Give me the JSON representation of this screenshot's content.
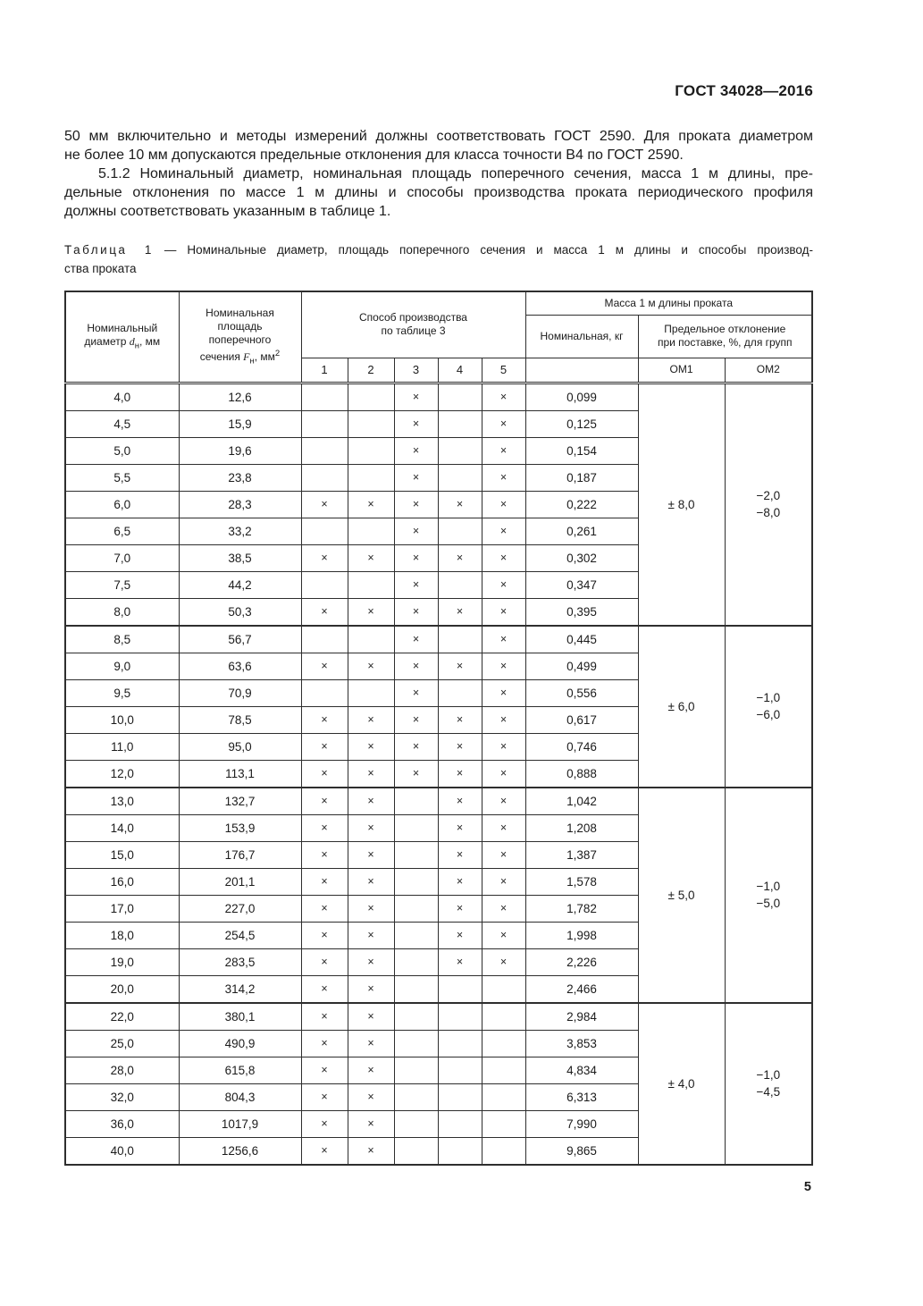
{
  "page": {
    "doc_code": "ГОСТ 34028—2016",
    "page_number": "5"
  },
  "paragraphs": {
    "p1_line1": "50 мм включительно и методы измерений должны соответствовать ГОСТ 2590. Для проката диаметром",
    "p1_line2": "не более 10 мм допускаются предельные отклонения для класса точности В4 по ГОСТ 2590.",
    "p2_line1": "5.1.2  Номинальный диаметр, номинальная площадь поперечного сечения, масса 1 м длины, пре-",
    "p2_line2": "дельные отклонения по массе 1 м длины и способы производства проката периодического профиля",
    "p2_line3": "должны соответствовать указанным в таблице 1."
  },
  "table": {
    "caption_label": "Таблица 1",
    "caption_line1_rest": "— Номинальные диаметр, площадь поперечного сечения и масса 1 м длины и способы производ-",
    "caption_line2": "ства проката",
    "head": {
      "diameter_line1": "Номинальный",
      "diameter_line2_pre": "диаметр ",
      "diameter_symbol": "d",
      "diameter_sub": "н",
      "diameter_line2_post": ", мм",
      "area_line1": "Номинальная",
      "area_line2": "площадь",
      "area_line3": "поперечного",
      "area_line4_pre": "сечения ",
      "area_symbol": "F",
      "area_sub": "н",
      "area_line4_post": ", мм",
      "area_sup": "2",
      "method_line1": "Способ производства",
      "method_line2": "по таблице 3",
      "method_cols": [
        "1",
        "2",
        "3",
        "4",
        "5"
      ],
      "mass": "Масса 1 м длины проката",
      "mass_nominal": "Номинальная, кг",
      "tolerance_line1": "Предельное отклонение",
      "tolerance_line2": "при поставке, %, для групп",
      "om1": "ОМ1",
      "om2": "ОМ2"
    },
    "groups": [
      {
        "om1": "± 8,0",
        "om2": "−2,0\n−8,0",
        "rows": [
          {
            "d": "4,0",
            "f": "12,6",
            "m": [
              "",
              "",
              "×",
              "",
              "×"
            ],
            "mass": "0,099"
          },
          {
            "d": "4,5",
            "f": "15,9",
            "m": [
              "",
              "",
              "×",
              "",
              "×"
            ],
            "mass": "0,125"
          },
          {
            "d": "5,0",
            "f": "19,6",
            "m": [
              "",
              "",
              "×",
              "",
              "×"
            ],
            "mass": "0,154"
          },
          {
            "d": "5,5",
            "f": "23,8",
            "m": [
              "",
              "",
              "×",
              "",
              "×"
            ],
            "mass": "0,187"
          },
          {
            "d": "6,0",
            "f": "28,3",
            "m": [
              "×",
              "×",
              "×",
              "×",
              "×"
            ],
            "mass": "0,222"
          },
          {
            "d": "6,5",
            "f": "33,2",
            "m": [
              "",
              "",
              "×",
              "",
              "×"
            ],
            "mass": "0,261"
          },
          {
            "d": "7,0",
            "f": "38,5",
            "m": [
              "×",
              "×",
              "×",
              "×",
              "×"
            ],
            "mass": "0,302"
          },
          {
            "d": "7,5",
            "f": "44,2",
            "m": [
              "",
              "",
              "×",
              "",
              "×"
            ],
            "mass": "0,347"
          },
          {
            "d": "8,0",
            "f": "50,3",
            "m": [
              "×",
              "×",
              "×",
              "×",
              "×"
            ],
            "mass": "0,395"
          }
        ]
      },
      {
        "om1": "± 6,0",
        "om2": "−1,0\n−6,0",
        "rows": [
          {
            "d": "8,5",
            "f": "56,7",
            "m": [
              "",
              "",
              "×",
              "",
              "×"
            ],
            "mass": "0,445"
          },
          {
            "d": "9,0",
            "f": "63,6",
            "m": [
              "×",
              "×",
              "×",
              "×",
              "×"
            ],
            "mass": "0,499"
          },
          {
            "d": "9,5",
            "f": "70,9",
            "m": [
              "",
              "",
              "×",
              "",
              "×"
            ],
            "mass": "0,556"
          },
          {
            "d": "10,0",
            "f": "78,5",
            "m": [
              "×",
              "×",
              "×",
              "×",
              "×"
            ],
            "mass": "0,617"
          },
          {
            "d": "11,0",
            "f": "95,0",
            "m": [
              "×",
              "×",
              "×",
              "×",
              "×"
            ],
            "mass": "0,746"
          },
          {
            "d": "12,0",
            "f": "113,1",
            "m": [
              "×",
              "×",
              "×",
              "×",
              "×"
            ],
            "mass": "0,888"
          }
        ]
      },
      {
        "om1": "± 5,0",
        "om2": "−1,0\n−5,0",
        "rows": [
          {
            "d": "13,0",
            "f": "132,7",
            "m": [
              "×",
              "×",
              "",
              "×",
              "×"
            ],
            "mass": "1,042"
          },
          {
            "d": "14,0",
            "f": "153,9",
            "m": [
              "×",
              "×",
              "",
              "×",
              "×"
            ],
            "mass": "1,208"
          },
          {
            "d": "15,0",
            "f": "176,7",
            "m": [
              "×",
              "×",
              "",
              "×",
              "×"
            ],
            "mass": "1,387"
          },
          {
            "d": "16,0",
            "f": "201,1",
            "m": [
              "×",
              "×",
              "",
              "×",
              "×"
            ],
            "mass": "1,578"
          },
          {
            "d": "17,0",
            "f": "227,0",
            "m": [
              "×",
              "×",
              "",
              "×",
              "×"
            ],
            "mass": "1,782"
          },
          {
            "d": "18,0",
            "f": "254,5",
            "m": [
              "×",
              "×",
              "",
              "×",
              "×"
            ],
            "mass": "1,998"
          },
          {
            "d": "19,0",
            "f": "283,5",
            "m": [
              "×",
              "×",
              "",
              "×",
              "×"
            ],
            "mass": "2,226"
          },
          {
            "d": "20,0",
            "f": "314,2",
            "m": [
              "×",
              "×",
              "",
              "",
              ""
            ],
            "mass": "2,466"
          }
        ]
      },
      {
        "om1": "± 4,0",
        "om2": "−1,0\n−4,5",
        "rows": [
          {
            "d": "22,0",
            "f": "380,1",
            "m": [
              "×",
              "×",
              "",
              "",
              ""
            ],
            "mass": "2,984"
          },
          {
            "d": "25,0",
            "f": "490,9",
            "m": [
              "×",
              "×",
              "",
              "",
              ""
            ],
            "mass": "3,853"
          },
          {
            "d": "28,0",
            "f": "615,8",
            "m": [
              "×",
              "×",
              "",
              "",
              ""
            ],
            "mass": "4,834"
          },
          {
            "d": "32,0",
            "f": "804,3",
            "m": [
              "×",
              "×",
              "",
              "",
              ""
            ],
            "mass": "6,313"
          },
          {
            "d": "36,0",
            "f": "1017,9",
            "m": [
              "×",
              "×",
              "",
              "",
              ""
            ],
            "mass": "7,990"
          },
          {
            "d": "40,0",
            "f": "1256,6",
            "m": [
              "×",
              "×",
              "",
              "",
              ""
            ],
            "mass": "9,865"
          }
        ]
      }
    ]
  }
}
